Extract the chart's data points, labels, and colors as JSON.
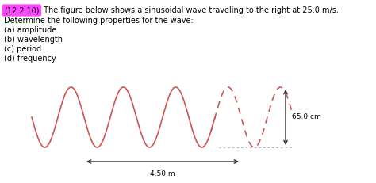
{
  "title_label": "(12.2.10)",
  "title_text": " The figure below shows a sinusoidal wave traveling to the right at 25.0 m/s.",
  "line2": "Determine the following properties for the wave:",
  "line3": "(a) amplitude",
  "line4": "(b) wavelength",
  "line5": "(c) period",
  "line6": "(d) frequency",
  "wave_color": "#cc5555",
  "dot_color": "#aaaaaa",
  "arrow_color": "#333333",
  "highlight_bg": "#ff44ff",
  "amplitude_label": "65.0 cm",
  "arrow_label": "4.50 m",
  "num_cycles": 5,
  "solid_cycles": 3.5,
  "fontsize_text": 7.0,
  "fontsize_annot": 6.5
}
